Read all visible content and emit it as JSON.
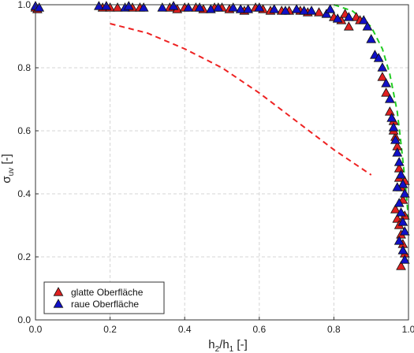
{
  "chart_data": {
    "type": "scatter",
    "xlim": [
      0,
      1
    ],
    "ylim": [
      0,
      1
    ],
    "xticks": [
      "0.0",
      "0.2",
      "0.4",
      "0.6",
      "0.8",
      "1.0"
    ],
    "yticks": [
      "0.0",
      "0.2",
      "0.4",
      "0.6",
      "0.8",
      "1.0"
    ],
    "xlabel": {
      "main": "h",
      "sub1": "2",
      "mid": "/h",
      "sub2": "1",
      "unit": " [-]"
    },
    "ylabel": {
      "main": "σ",
      "sub": "uv",
      "unit": " [-]"
    },
    "grid": true,
    "legend_position": "bottom-left",
    "series": [
      {
        "name": "glatte Oberfläche",
        "marker": "triangle",
        "color": "#e02020",
        "points": [
          [
            0.0,
            0.99
          ],
          [
            0.005,
            0.985
          ],
          [
            0.18,
            0.99
          ],
          [
            0.2,
            0.99
          ],
          [
            0.22,
            0.99
          ],
          [
            0.26,
            0.99
          ],
          [
            0.28,
            0.99
          ],
          [
            0.36,
            0.99
          ],
          [
            0.38,
            0.985
          ],
          [
            0.4,
            0.99
          ],
          [
            0.43,
            0.99
          ],
          [
            0.45,
            0.985
          ],
          [
            0.48,
            0.99
          ],
          [
            0.5,
            0.99
          ],
          [
            0.52,
            0.985
          ],
          [
            0.56,
            0.98
          ],
          [
            0.59,
            0.99
          ],
          [
            0.61,
            0.985
          ],
          [
            0.63,
            0.98
          ],
          [
            0.66,
            0.98
          ],
          [
            0.68,
            0.98
          ],
          [
            0.71,
            0.98
          ],
          [
            0.73,
            0.975
          ],
          [
            0.76,
            0.975
          ],
          [
            0.8,
            0.96
          ],
          [
            0.82,
            0.95
          ],
          [
            0.84,
            0.93
          ],
          [
            0.86,
            0.96
          ],
          [
            0.87,
            0.95
          ],
          [
            0.83,
            0.97
          ],
          [
            0.93,
            0.77
          ],
          [
            0.94,
            0.72
          ],
          [
            0.95,
            0.66
          ],
          [
            0.96,
            0.63
          ],
          [
            0.965,
            0.58
          ],
          [
            0.97,
            0.55
          ],
          [
            0.975,
            0.48
          ],
          [
            0.98,
            0.42
          ],
          [
            0.985,
            0.38
          ],
          [
            0.99,
            0.33
          ],
          [
            0.965,
            0.35
          ],
          [
            0.97,
            0.32
          ],
          [
            0.975,
            0.3
          ],
          [
            0.98,
            0.27
          ],
          [
            0.985,
            0.24
          ],
          [
            0.99,
            0.21
          ],
          [
            0.98,
            0.17
          ],
          [
            0.975,
            0.45
          ],
          [
            0.99,
            0.44
          ],
          [
            0.96,
            0.6
          ]
        ]
      },
      {
        "name": "raue Oberfläche",
        "marker": "triangle",
        "color": "#1010c8",
        "points": [
          [
            0.0,
            0.995
          ],
          [
            0.01,
            0.99
          ],
          [
            0.17,
            0.995
          ],
          [
            0.19,
            0.995
          ],
          [
            0.24,
            0.99
          ],
          [
            0.25,
            0.995
          ],
          [
            0.29,
            0.99
          ],
          [
            0.34,
            0.99
          ],
          [
            0.37,
            0.995
          ],
          [
            0.41,
            0.99
          ],
          [
            0.44,
            0.99
          ],
          [
            0.47,
            0.985
          ],
          [
            0.49,
            0.99
          ],
          [
            0.53,
            0.99
          ],
          [
            0.55,
            0.985
          ],
          [
            0.57,
            0.985
          ],
          [
            0.6,
            0.99
          ],
          [
            0.64,
            0.985
          ],
          [
            0.67,
            0.98
          ],
          [
            0.7,
            0.985
          ],
          [
            0.72,
            0.98
          ],
          [
            0.74,
            0.98
          ],
          [
            0.78,
            0.97
          ],
          [
            0.79,
            0.985
          ],
          [
            0.81,
            0.955
          ],
          [
            0.84,
            0.96
          ],
          [
            0.88,
            0.95
          ],
          [
            0.89,
            0.93
          ],
          [
            0.9,
            0.89
          ],
          [
            0.91,
            0.84
          ],
          [
            0.92,
            0.83
          ],
          [
            0.93,
            0.8
          ],
          [
            0.94,
            0.75
          ],
          [
            0.95,
            0.7
          ],
          [
            0.955,
            0.64
          ],
          [
            0.96,
            0.61
          ],
          [
            0.965,
            0.57
          ],
          [
            0.97,
            0.53
          ],
          [
            0.975,
            0.5
          ],
          [
            0.98,
            0.46
          ],
          [
            0.985,
            0.43
          ],
          [
            0.99,
            0.4
          ],
          [
            0.975,
            0.37
          ],
          [
            0.98,
            0.34
          ],
          [
            0.985,
            0.31
          ],
          [
            0.99,
            0.28
          ],
          [
            0.975,
            0.25
          ],
          [
            0.985,
            0.22
          ],
          [
            0.99,
            0.19
          ],
          [
            0.97,
            0.42
          ]
        ]
      }
    ],
    "curves": [
      {
        "color": "#ee2222",
        "style": "dashed",
        "points": [
          [
            0.2,
            0.94
          ],
          [
            0.3,
            0.91
          ],
          [
            0.4,
            0.86
          ],
          [
            0.5,
            0.8
          ],
          [
            0.6,
            0.72
          ],
          [
            0.7,
            0.63
          ],
          [
            0.8,
            0.54
          ],
          [
            0.9,
            0.46
          ]
        ]
      },
      {
        "color": "#22cc22",
        "style": "dashed",
        "points": [
          [
            0.8,
            1.0
          ],
          [
            0.85,
            0.98
          ],
          [
            0.9,
            0.93
          ],
          [
            0.93,
            0.86
          ],
          [
            0.95,
            0.78
          ],
          [
            0.97,
            0.66
          ],
          [
            0.98,
            0.56
          ],
          [
            0.99,
            0.45
          ],
          [
            1.0,
            0.32
          ]
        ]
      }
    ]
  }
}
